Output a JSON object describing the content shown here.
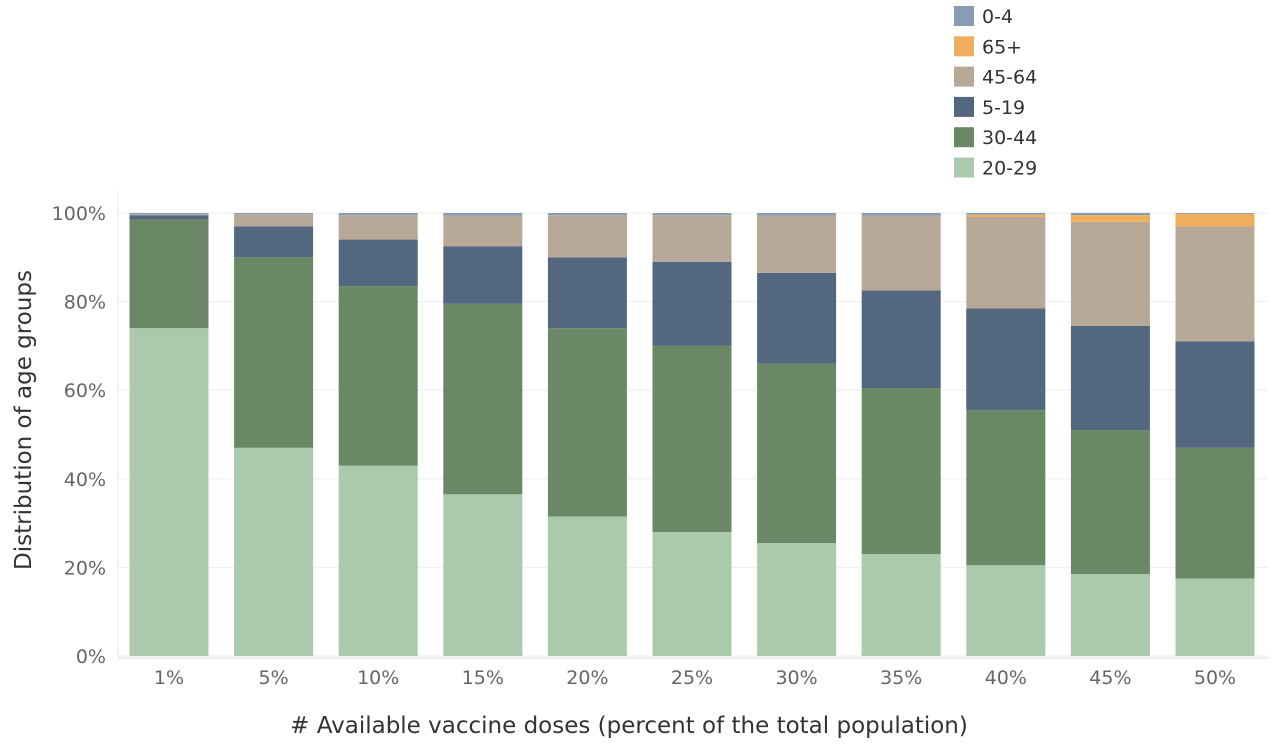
{
  "chart_data": {
    "type": "bar",
    "stacked": true,
    "title": "",
    "xlabel": "# Available vaccine doses (percent of the total population)",
    "ylabel": "Distribution of age groups",
    "ylim": [
      0,
      100
    ],
    "y_ticks": [
      "0%",
      "20%",
      "40%",
      "60%",
      "80%",
      "100%"
    ],
    "y_tick_values": [
      0,
      20,
      40,
      60,
      80,
      100
    ],
    "grid": true,
    "legend_position": "top-right",
    "legend_order": [
      "0-4",
      "65+",
      "45-64",
      "5-19",
      "30-44",
      "20-29"
    ],
    "categories": [
      "1%",
      "5%",
      "10%",
      "15%",
      "20%",
      "25%",
      "30%",
      "35%",
      "40%",
      "45%",
      "50%"
    ],
    "series": [
      {
        "name": "20-29",
        "color": "#abcaab",
        "values": [
          74,
          47,
          43,
          36.5,
          31.5,
          28,
          25.5,
          23,
          20.5,
          18.5,
          17.5
        ]
      },
      {
        "name": "30-44",
        "color": "#6a8866",
        "values": [
          24.5,
          43,
          40.5,
          43,
          42.5,
          42,
          40.5,
          37.5,
          35,
          32.5,
          29.5
        ]
      },
      {
        "name": "5-19",
        "color": "#53677e",
        "values": [
          1,
          7,
          10.5,
          13,
          16,
          19,
          20.5,
          22,
          23,
          23.5,
          24
        ]
      },
      {
        "name": "45-64",
        "color": "#b7a897",
        "values": [
          0.2,
          2.7,
          5.5,
          6.9,
          9.5,
          10.5,
          12.9,
          16.9,
          20.6,
          23.5,
          26
        ]
      },
      {
        "name": "65+",
        "color": "#f0ad5c",
        "values": [
          0,
          0,
          0,
          0,
          0,
          0,
          0,
          0,
          0.5,
          1.5,
          2.8
        ]
      },
      {
        "name": "0-4",
        "color": "#8a9cb2",
        "values": [
          0.3,
          0.3,
          0.5,
          0.6,
          0.5,
          0.5,
          0.6,
          0.6,
          0.4,
          0.5,
          0.2
        ]
      }
    ]
  }
}
